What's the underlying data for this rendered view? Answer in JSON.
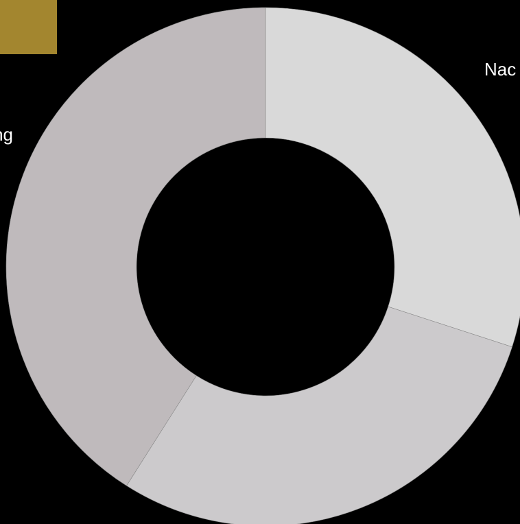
{
  "chart_data": {
    "type": "pie",
    "subtype": "donut",
    "background": "#000000",
    "accent_color": "#A3862F",
    "segments": [
      {
        "label": "Nac",
        "value": 30,
        "color": "#D9D9D9"
      },
      {
        "label": "",
        "value": 29,
        "color": "#CCCACC"
      },
      {
        "label": "ng",
        "value": 41,
        "color": "#BFBABC"
      }
    ],
    "legend": "none"
  }
}
